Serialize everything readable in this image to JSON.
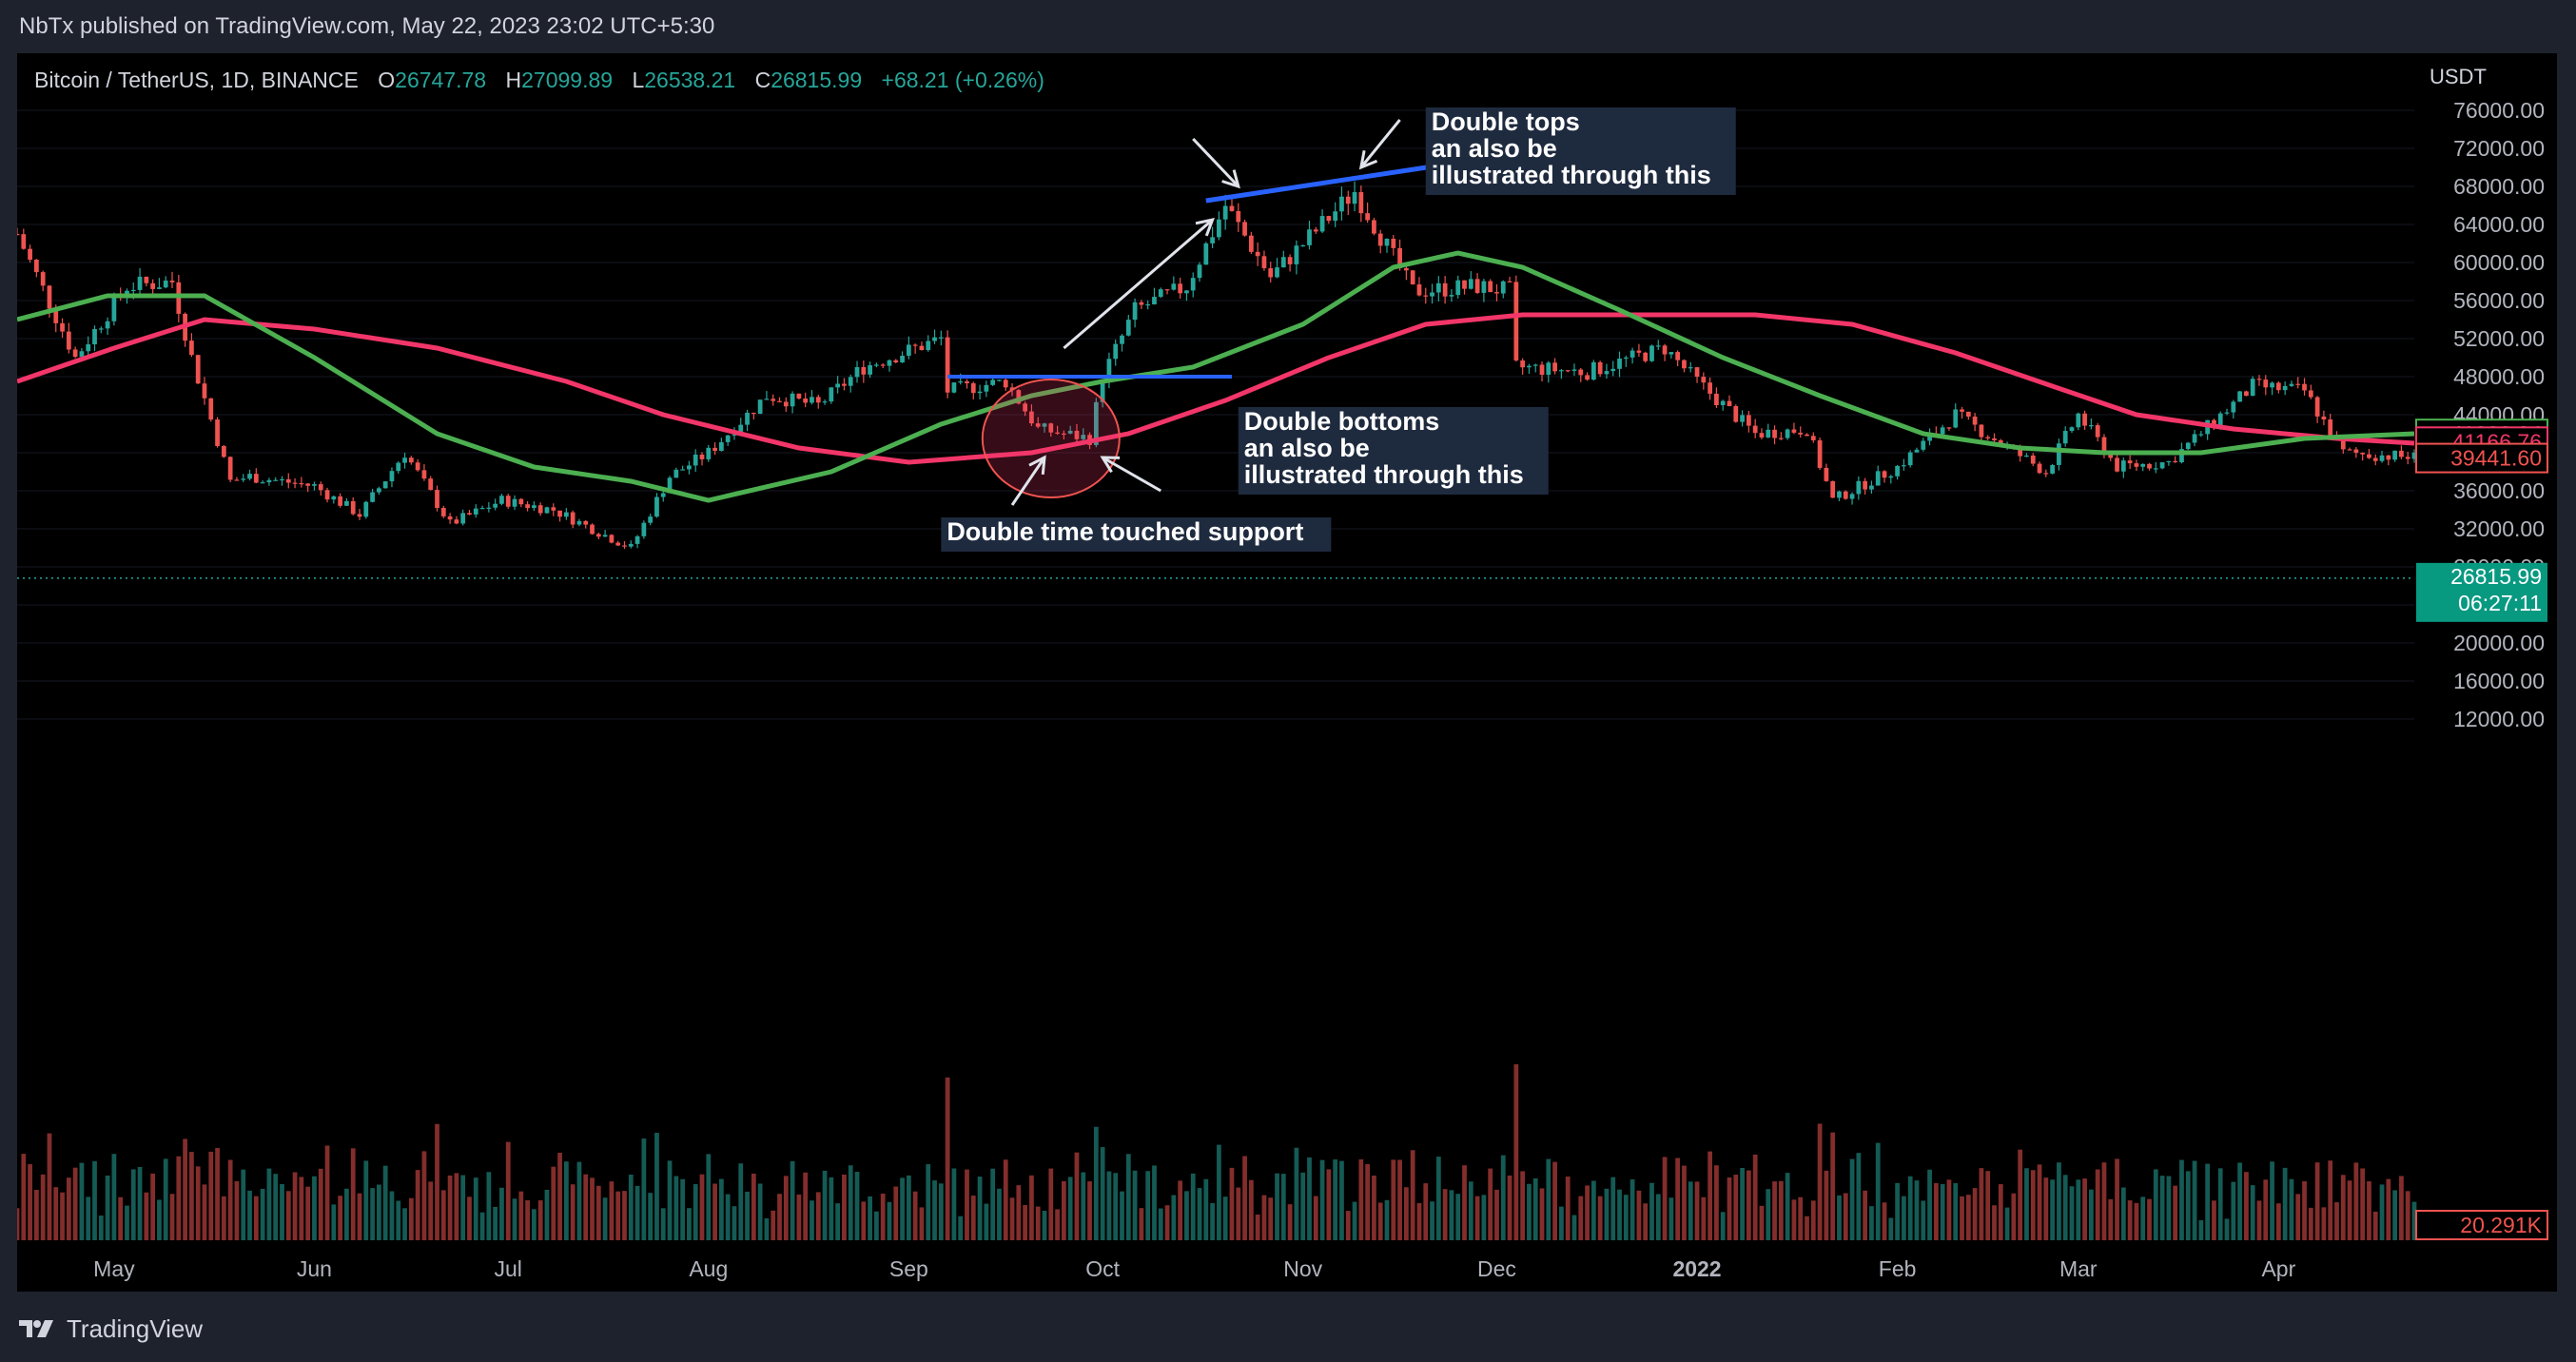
{
  "header": {
    "text": "NbTx published on TradingView.com, May 22, 2023 23:02 UTC+5:30"
  },
  "footer": {
    "brand": "TradingView",
    "logo_icon": "tradingview-logo-icon"
  },
  "colors": {
    "background": "#000000",
    "up": "#26a69a",
    "down": "#ef5350",
    "ma_fast": "#4caf50",
    "ma_slow": "#f23669",
    "trendline": "#2962ff",
    "annotation_bg": "#1e2a3e"
  },
  "ohlc_legend": {
    "symbol": "Bitcoin / TetherUS, 1D, BINANCE",
    "o_label": "O",
    "o": "26747.78",
    "h_label": "H",
    "h": "27099.89",
    "l_label": "L",
    "l": "26538.21",
    "c_label": "C",
    "c": "26815.99",
    "change": "+68.21 (+0.26%)"
  },
  "chart_data": {
    "type": "candlestick",
    "currency": "USDT",
    "ylim": [
      16000,
      78000
    ],
    "y_ticks": [
      "76000.00",
      "72000.00",
      "68000.00",
      "64000.00",
      "60000.00",
      "56000.00",
      "52000.00",
      "48000.00",
      "44000.00",
      "40000.00",
      "36000.00",
      "32000.00",
      "28000.00",
      "24000.00",
      "20000.00",
      "16000.00",
      "12000.00"
    ],
    "x_ticks": [
      "May",
      "Jun",
      "Jul",
      "Aug",
      "Sep",
      "Oct",
      "Nov",
      "Dec",
      "2022",
      "Feb",
      "Mar",
      "Apr"
    ],
    "x_tick_dates": [
      "2021-05-01",
      "2021-06-01",
      "2021-07-01",
      "2021-08-01",
      "2021-09-01",
      "2021-10-01",
      "2021-11-01",
      "2021-12-01",
      "2022-01-01",
      "2022-02-01",
      "2022-03-01",
      "2022-04-01"
    ],
    "date_range": [
      "2021-04-16",
      "2022-04-22"
    ],
    "price_path": [
      [
        "2021-04-16",
        63000
      ],
      [
        "2021-04-25",
        50000
      ],
      [
        "2021-05-03",
        57500
      ],
      [
        "2021-05-10",
        58000
      ],
      [
        "2021-05-13",
        50000
      ],
      [
        "2021-05-19",
        37000
      ],
      [
        "2021-05-22",
        37500
      ],
      [
        "2021-06-01",
        36500
      ],
      [
        "2021-06-08",
        33500
      ],
      [
        "2021-06-15",
        40000
      ],
      [
        "2021-06-22",
        32500
      ],
      [
        "2021-06-30",
        35000
      ],
      [
        "2021-07-08",
        34000
      ],
      [
        "2021-07-20",
        30000
      ],
      [
        "2021-07-26",
        37500
      ],
      [
        "2021-08-01",
        40000
      ],
      [
        "2021-08-10",
        46000
      ],
      [
        "2021-08-18",
        45000
      ],
      [
        "2021-08-25",
        49000
      ],
      [
        "2021-09-06",
        52000
      ],
      [
        "2021-09-07",
        46500
      ],
      [
        "2021-09-16",
        47500
      ],
      [
        "2021-09-21",
        42500
      ],
      [
        "2021-09-29",
        41500
      ],
      [
        "2021-10-01",
        48000
      ],
      [
        "2021-10-06",
        55000
      ],
      [
        "2021-10-14",
        57500
      ],
      [
        "2021-10-20",
        66000
      ],
      [
        "2021-10-27",
        58500
      ],
      [
        "2021-11-09",
        67500
      ],
      [
        "2021-11-18",
        57000
      ],
      [
        "2021-11-28",
        57500
      ],
      [
        "2021-12-03",
        57000
      ],
      [
        "2021-12-04",
        49000
      ],
      [
        "2021-12-15",
        48500
      ],
      [
        "2021-12-27",
        51000
      ],
      [
        "2022-01-01",
        47500
      ],
      [
        "2022-01-10",
        42000
      ],
      [
        "2022-01-18",
        42500
      ],
      [
        "2022-01-22",
        35000
      ],
      [
        "2022-02-01",
        38500
      ],
      [
        "2022-02-10",
        44000
      ],
      [
        "2022-02-24",
        38000
      ],
      [
        "2022-03-01",
        44000
      ],
      [
        "2022-03-07",
        38500
      ],
      [
        "2022-03-15",
        39000
      ],
      [
        "2022-03-28",
        47000
      ],
      [
        "2022-04-05",
        46500
      ],
      [
        "2022-04-11",
        40000
      ],
      [
        "2022-04-22",
        39500
      ]
    ],
    "ma_fast": {
      "name": "MA (fast)",
      "points": [
        [
          "2021-04-16",
          54000
        ],
        [
          "2021-04-30",
          56500
        ],
        [
          "2021-05-15",
          56500
        ],
        [
          "2021-06-01",
          50000
        ],
        [
          "2021-06-20",
          42000
        ],
        [
          "2021-07-05",
          38500
        ],
        [
          "2021-07-20",
          37000
        ],
        [
          "2021-08-01",
          35000
        ],
        [
          "2021-08-20",
          38000
        ],
        [
          "2021-09-06",
          43000
        ],
        [
          "2021-09-20",
          46000
        ],
        [
          "2021-10-01",
          47500
        ],
        [
          "2021-10-15",
          49000
        ],
        [
          "2021-11-01",
          53500
        ],
        [
          "2021-11-15",
          59500
        ],
        [
          "2021-11-25",
          61000
        ],
        [
          "2021-12-05",
          59500
        ],
        [
          "2021-12-20",
          55000
        ],
        [
          "2022-01-05",
          50000
        ],
        [
          "2022-01-20",
          46000
        ],
        [
          "2022-02-05",
          42000
        ],
        [
          "2022-02-20",
          40500
        ],
        [
          "2022-03-05",
          40000
        ],
        [
          "2022-03-20",
          40000
        ],
        [
          "2022-04-05",
          41500
        ],
        [
          "2022-04-22",
          42000
        ]
      ],
      "last_value": "41982.04"
    },
    "ma_slow": {
      "name": "MA (slow)",
      "points": [
        [
          "2021-04-16",
          47500
        ],
        [
          "2021-05-01",
          51000
        ],
        [
          "2021-05-15",
          54000
        ],
        [
          "2021-06-01",
          53000
        ],
        [
          "2021-06-20",
          51000
        ],
        [
          "2021-07-10",
          47500
        ],
        [
          "2021-07-25",
          44000
        ],
        [
          "2021-08-15",
          40500
        ],
        [
          "2021-09-01",
          39000
        ],
        [
          "2021-09-20",
          40000
        ],
        [
          "2021-10-05",
          42000
        ],
        [
          "2021-10-20",
          45500
        ],
        [
          "2021-11-05",
          50000
        ],
        [
          "2021-11-20",
          53500
        ],
        [
          "2021-12-05",
          54500
        ],
        [
          "2021-12-25",
          54500
        ],
        [
          "2022-01-10",
          54500
        ],
        [
          "2022-01-25",
          53500
        ],
        [
          "2022-02-10",
          50500
        ],
        [
          "2022-02-25",
          47000
        ],
        [
          "2022-03-10",
          44000
        ],
        [
          "2022-03-25",
          42500
        ],
        [
          "2022-04-10",
          41500
        ],
        [
          "2022-04-22",
          41000
        ]
      ],
      "last_value": "41166.76"
    },
    "price_labels": [
      {
        "value": "41982.04",
        "price": 41982,
        "color": "#4caf50",
        "style": "outline"
      },
      {
        "value": "41166.76",
        "price": 41167,
        "color": "#f23669",
        "style": "outline"
      },
      {
        "value": "39441.60",
        "price": 39442,
        "color": "#ef5350",
        "style": "outline"
      },
      {
        "value": "26815.99",
        "price": 26816,
        "color": "#089981",
        "style": "filled",
        "countdown": "06:27:11"
      }
    ],
    "volume_label": "20.291K",
    "current_price": 26815.99
  },
  "drawings": {
    "resistance_line": {
      "price": 48000,
      "from": "2021-09-07",
      "to": "2021-10-21",
      "color": "#2962ff"
    },
    "top_trendline": {
      "from": [
        "2021-10-17",
        66500
      ],
      "to": [
        "2021-11-25",
        70500
      ],
      "color": "#2962ff"
    },
    "support_circle": {
      "center": [
        "2021-09-23",
        41500
      ]
    },
    "rally_arrow": {
      "from": [
        "2021-09-25",
        51000
      ],
      "to": [
        "2021-10-18",
        64500
      ]
    },
    "arrows": [
      {
        "from": [
          "2021-10-15",
          73000
        ],
        "to": [
          "2021-10-22",
          68000
        ]
      },
      {
        "from": [
          "2021-11-16",
          75000
        ],
        "to": [
          "2021-11-10",
          70000
        ]
      },
      {
        "from": [
          "2021-09-17",
          34500
        ],
        "to": [
          "2021-09-22",
          39500
        ]
      },
      {
        "from": [
          "2021-10-10",
          36000
        ],
        "to": [
          "2021-10-01",
          39500
        ]
      }
    ],
    "annotations": {
      "double_tops": [
        "Double tops",
        "an also be",
        "illustrated through this"
      ],
      "double_bottoms": [
        "Double bottoms",
        "an also be",
        "illustrated through this"
      ],
      "double_support": "Double time touched support"
    }
  }
}
